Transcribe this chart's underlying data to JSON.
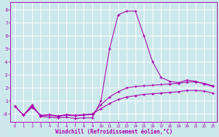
{
  "title": "",
  "xlabel": "Windchill (Refroidissement éolien,°C)",
  "ylabel": "",
  "background_color": "#cce8ec",
  "grid_color": "#ffffff",
  "line_color": "#aa00aa",
  "xlim": [
    -0.5,
    23.5
  ],
  "ylim": [
    -0.6,
    8.6
  ],
  "xticks": [
    0,
    1,
    2,
    3,
    4,
    5,
    6,
    7,
    8,
    9,
    10,
    11,
    12,
    13,
    14,
    15,
    16,
    17,
    18,
    19,
    20,
    21,
    22,
    23
  ],
  "yticks": [
    0,
    1,
    2,
    3,
    4,
    5,
    6,
    7,
    8
  ],
  "ytick_labels": [
    "-0",
    "1",
    "2",
    "3",
    "4",
    "5",
    "6",
    "7",
    "8"
  ],
  "series": [
    {
      "x": [
        0,
        1,
        2,
        3,
        4,
        5,
        6,
        7,
        8,
        9,
        10,
        11,
        12,
        13,
        14,
        15,
        16,
        17,
        18,
        19,
        20,
        21,
        22,
        23
      ],
      "y": [
        0.6,
        -0.1,
        0.7,
        -0.2,
        -0.25,
        -0.3,
        -0.25,
        -0.35,
        -0.3,
        -0.3,
        1.0,
        5.0,
        7.6,
        7.9,
        7.9,
        6.0,
        4.0,
        2.8,
        2.5,
        2.4,
        2.6,
        2.5,
        2.3,
        2.1
      ]
    },
    {
      "x": [
        0,
        1,
        2,
        3,
        4,
        5,
        6,
        7,
        8,
        9,
        10,
        11,
        12,
        13,
        14,
        15,
        16,
        17,
        18,
        19,
        20,
        21,
        22,
        23
      ],
      "y": [
        0.6,
        -0.1,
        0.6,
        -0.15,
        -0.1,
        -0.2,
        -0.1,
        -0.15,
        -0.1,
        -0.05,
        0.7,
        1.3,
        1.7,
        2.0,
        2.1,
        2.15,
        2.2,
        2.25,
        2.3,
        2.35,
        2.45,
        2.45,
        2.35,
        2.15
      ]
    },
    {
      "x": [
        0,
        1,
        2,
        3,
        4,
        5,
        6,
        7,
        8,
        9,
        10,
        11,
        12,
        13,
        14,
        15,
        16,
        17,
        18,
        19,
        20,
        21,
        22,
        23
      ],
      "y": [
        0.6,
        -0.1,
        0.5,
        -0.1,
        -0.05,
        -0.15,
        -0.05,
        -0.1,
        -0.05,
        0.0,
        0.4,
        0.8,
        1.1,
        1.3,
        1.4,
        1.5,
        1.55,
        1.6,
        1.65,
        1.7,
        1.8,
        1.8,
        1.75,
        1.6
      ]
    }
  ]
}
